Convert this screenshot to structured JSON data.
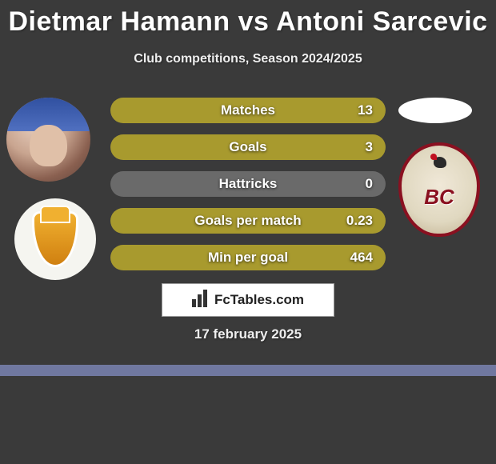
{
  "title": "Dietmar Hamann vs Antoni Sarcevic",
  "subtitle": "Club competitions, Season 2024/2025",
  "date": "17 february 2025",
  "attribution": "FcTables.com",
  "player_left": {
    "name": "Dietmar Hamann"
  },
  "player_right": {
    "name": "Antoni Sarcevic"
  },
  "club_right_abbrev": "BC",
  "stats": {
    "background_color": "#a89a2e",
    "zero_background_color": "#6a6a6a",
    "rows": [
      {
        "label": "Matches",
        "value": "13",
        "zero": false
      },
      {
        "label": "Goals",
        "value": "3",
        "zero": false
      },
      {
        "label": "Hattricks",
        "value": "0",
        "zero": true
      },
      {
        "label": "Goals per match",
        "value": "0.23",
        "zero": false
      },
      {
        "label": "Min per goal",
        "value": "464",
        "zero": false
      }
    ]
  },
  "styling": {
    "page_bg": "#3a3a3a",
    "title_fontsize": 34,
    "subtitle_fontsize": 16,
    "stat_label_fontsize": 17,
    "stripe_color": "#7078a0"
  }
}
